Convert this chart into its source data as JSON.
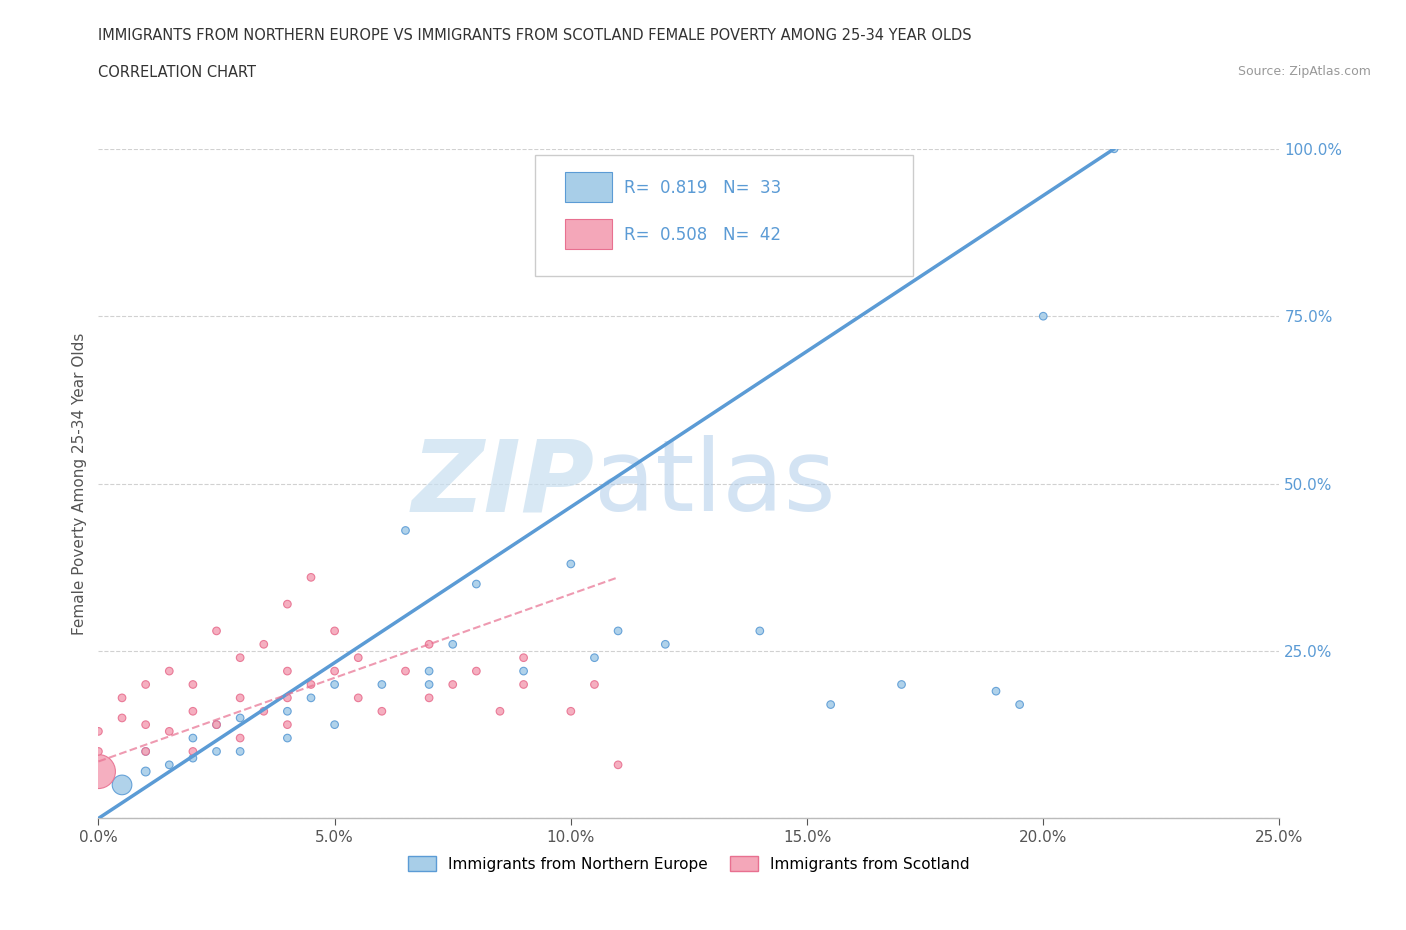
{
  "title_line1": "IMMIGRANTS FROM NORTHERN EUROPE VS IMMIGRANTS FROM SCOTLAND FEMALE POVERTY AMONG 25-34 YEAR OLDS",
  "title_line2": "CORRELATION CHART",
  "source_text": "Source: ZipAtlas.com",
  "ylabel": "Female Poverty Among 25-34 Year Olds",
  "xlim": [
    0,
    0.25
  ],
  "ylim": [
    0,
    1.0
  ],
  "xticks": [
    0.0,
    0.05,
    0.1,
    0.15,
    0.2,
    0.25
  ],
  "yticks": [
    0.0,
    0.25,
    0.5,
    0.75,
    1.0
  ],
  "xtick_labels": [
    "0.0%",
    "5.0%",
    "10.0%",
    "15.0%",
    "20.0%",
    "25.0%"
  ],
  "ytick_labels": [
    "",
    "25.0%",
    "50.0%",
    "75.0%",
    "100.0%"
  ],
  "blue_R": 0.819,
  "blue_N": 33,
  "pink_R": 0.508,
  "pink_N": 42,
  "blue_color": "#A8CEE8",
  "pink_color": "#F4A7B9",
  "blue_line_color": "#5B9BD5",
  "pink_line_color": "#E87090",
  "legend_label_blue": "Immigrants from Northern Europe",
  "legend_label_pink": "Immigrants from Scotland",
  "watermark_zip": "ZIP",
  "watermark_atlas": "atlas",
  "background_color": "#FFFFFF",
  "blue_scatter_x": [
    0.005,
    0.01,
    0.01,
    0.015,
    0.02,
    0.02,
    0.025,
    0.025,
    0.03,
    0.03,
    0.04,
    0.04,
    0.045,
    0.05,
    0.05,
    0.06,
    0.065,
    0.07,
    0.07,
    0.075,
    0.08,
    0.09,
    0.1,
    0.105,
    0.11,
    0.12,
    0.14,
    0.155,
    0.17,
    0.19,
    0.195,
    0.2,
    0.215
  ],
  "blue_scatter_y": [
    0.05,
    0.07,
    0.1,
    0.08,
    0.09,
    0.12,
    0.1,
    0.14,
    0.1,
    0.15,
    0.12,
    0.16,
    0.18,
    0.14,
    0.2,
    0.2,
    0.43,
    0.2,
    0.22,
    0.26,
    0.35,
    0.22,
    0.38,
    0.24,
    0.28,
    0.26,
    0.28,
    0.17,
    0.2,
    0.19,
    0.17,
    0.75,
    1.0
  ],
  "blue_scatter_size": [
    200,
    40,
    30,
    30,
    30,
    30,
    30,
    30,
    30,
    30,
    30,
    30,
    30,
    30,
    30,
    30,
    30,
    30,
    30,
    30,
    30,
    30,
    30,
    30,
    30,
    30,
    30,
    30,
    30,
    30,
    30,
    30,
    30
  ],
  "pink_scatter_x": [
    0.0,
    0.0,
    0.0,
    0.005,
    0.005,
    0.01,
    0.01,
    0.01,
    0.015,
    0.015,
    0.02,
    0.02,
    0.02,
    0.025,
    0.025,
    0.03,
    0.03,
    0.03,
    0.035,
    0.035,
    0.04,
    0.04,
    0.04,
    0.04,
    0.045,
    0.045,
    0.05,
    0.05,
    0.055,
    0.055,
    0.06,
    0.065,
    0.07,
    0.07,
    0.075,
    0.08,
    0.085,
    0.09,
    0.09,
    0.1,
    0.105,
    0.11
  ],
  "pink_scatter_y": [
    0.07,
    0.1,
    0.13,
    0.15,
    0.18,
    0.1,
    0.14,
    0.2,
    0.13,
    0.22,
    0.1,
    0.16,
    0.2,
    0.14,
    0.28,
    0.12,
    0.18,
    0.24,
    0.16,
    0.26,
    0.14,
    0.18,
    0.22,
    0.32,
    0.2,
    0.36,
    0.22,
    0.28,
    0.18,
    0.24,
    0.16,
    0.22,
    0.18,
    0.26,
    0.2,
    0.22,
    0.16,
    0.2,
    0.24,
    0.16,
    0.2,
    0.08
  ],
  "pink_scatter_size": [
    600,
    30,
    30,
    30,
    30,
    30,
    30,
    30,
    30,
    30,
    30,
    30,
    30,
    30,
    30,
    30,
    30,
    30,
    30,
    30,
    30,
    30,
    30,
    30,
    30,
    30,
    30,
    30,
    30,
    30,
    30,
    30,
    30,
    30,
    30,
    30,
    30,
    30,
    30,
    30,
    30,
    30
  ],
  "blue_trendline_x": [
    0.0,
    0.215
  ],
  "blue_trendline_y": [
    0.0,
    1.0
  ],
  "pink_trendline_x": [
    0.0,
    0.11
  ],
  "pink_trendline_y": [
    0.085,
    0.36
  ]
}
